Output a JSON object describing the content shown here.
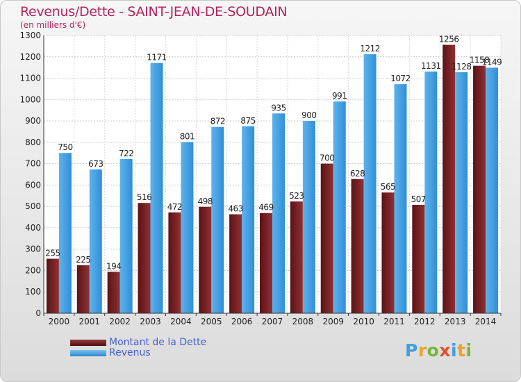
{
  "header": {
    "title": "Revenus/Dette - SAINT-JEAN-DE-SOUDAIN",
    "subtitle": "(en milliers d'€)"
  },
  "chart_data": {
    "type": "bar",
    "title": "Revenus/Dette - SAINT-JEAN-DE-SOUDAIN",
    "subtitle": "(en milliers d'€)",
    "xlabel": "",
    "ylabel": "",
    "categories": [
      "2000",
      "2001",
      "2002",
      "2003",
      "2004",
      "2005",
      "2006",
      "2007",
      "2008",
      "2009",
      "2010",
      "2011",
      "2012",
      "2013",
      "2014"
    ],
    "series": [
      {
        "name": "Montant de la Dette",
        "color": "#7a1f22",
        "values": [
          255,
          225,
          194,
          516,
          472,
          498,
          463,
          469,
          523,
          700,
          628,
          565,
          507,
          1256,
          1158
        ]
      },
      {
        "name": "Revenus",
        "color": "#3f9fe2",
        "values": [
          750,
          673,
          722,
          1171,
          801,
          872,
          875,
          935,
          900,
          991,
          1212,
          1072,
          1131,
          1128,
          1149
        ]
      }
    ],
    "ylim": [
      0,
      1300
    ],
    "yticks": [
      0,
      100,
      200,
      300,
      400,
      500,
      600,
      700,
      800,
      900,
      1000,
      1100,
      1200,
      1300
    ],
    "grid": true,
    "legend_position": "bottom-left"
  },
  "legend": {
    "items": [
      {
        "label": "Montant de la Dette",
        "color": "#7a1f22"
      },
      {
        "label": "Revenus",
        "color": "#3f9fe2"
      }
    ]
  },
  "logo": {
    "text": "Proxiti",
    "letters": [
      {
        "char": "P",
        "color": "#3f9fe2"
      },
      {
        "char": "r",
        "color": "#f2a026"
      },
      {
        "char": "o",
        "color": "#79b43a"
      },
      {
        "char": "x",
        "color": "#e2502c"
      },
      {
        "char": "i",
        "color": "#3f9fe2"
      },
      {
        "char": "t",
        "color": "#f2a026"
      },
      {
        "char": "i",
        "color": "#79b43a"
      }
    ]
  }
}
